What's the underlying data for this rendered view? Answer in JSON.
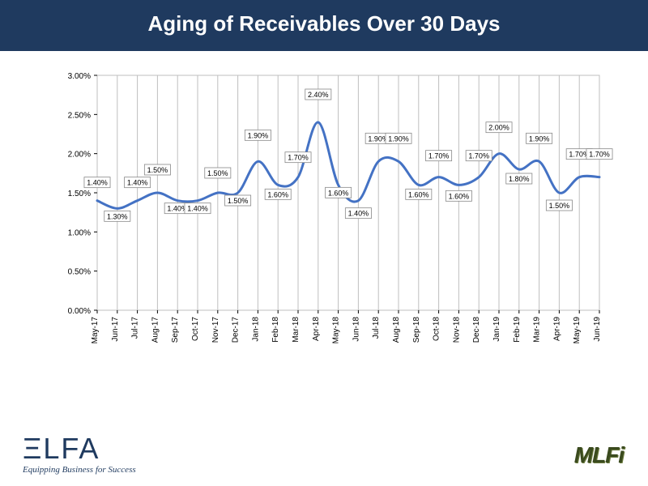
{
  "title": "Aging of Receivables Over 30 Days",
  "chart": {
    "type": "line",
    "x_labels": [
      "May-17",
      "Jun-17",
      "Jul-17",
      "Aug-17",
      "Sep-17",
      "Oct-17",
      "Nov-17",
      "Dec-17",
      "Jan-18",
      "Feb-18",
      "Mar-18",
      "Apr-18",
      "May-18",
      "Jun-18",
      "Jul-18",
      "Aug-18",
      "Sep-18",
      "Oct-18",
      "Nov-18",
      "Dec-18",
      "Jan-19",
      "Feb-19",
      "Mar-19",
      "Apr-19",
      "May-19",
      "Jun-19"
    ],
    "values": [
      1.4,
      1.3,
      1.4,
      1.5,
      1.4,
      1.4,
      1.5,
      1.5,
      1.9,
      1.6,
      1.7,
      2.4,
      1.6,
      1.4,
      1.9,
      1.9,
      1.6,
      1.7,
      1.6,
      1.7,
      2.0,
      1.8,
      1.9,
      1.5,
      1.7,
      1.7
    ],
    "data_label_suffix": "%",
    "ylim": [
      0.0,
      3.0
    ],
    "ytick_step": 0.5,
    "ytick_format": "0.00%",
    "line_color": "#4472c4",
    "line_width": 3,
    "grid_color": "#bfbfbf",
    "background_color": "#ffffff",
    "axis_font_size": 11,
    "tick_font_size": 10,
    "label_box_border": "#888888",
    "label_box_bg": "#ffffff",
    "label_font_size": 9,
    "smoothing": true
  },
  "logos": {
    "left_text": "ΞLFA",
    "left_tagline": "Equipping Business for Success",
    "right_text": "MLFi"
  }
}
